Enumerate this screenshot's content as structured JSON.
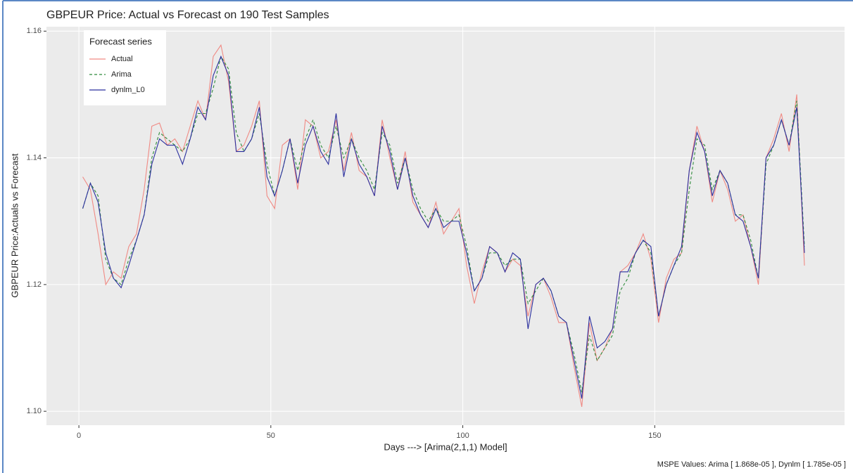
{
  "chart_data": {
    "type": "line",
    "title": "GBPEUR Price: Actual vs Forecast on 190 Test Samples",
    "x_label": "Days ---> [Arima(2,1,1) Model]",
    "y_label": "GBPEUR Price:Actuals vs Forecast",
    "caption": "MSPE Values: Arima [ 1.868e-05 ], Dynlm [ 1.785e-05 ]",
    "legend_title": "Forecast series",
    "legend_position": "top-left",
    "grid": true,
    "xlim": [
      -8.45,
      199.45
    ],
    "ylim": [
      1.0978,
      1.1607
    ],
    "xticks": [
      0,
      50,
      100,
      150
    ],
    "yticks": [
      {
        "value": 1.1,
        "label": "1.10"
      },
      1.12,
      1.14,
      1.16
    ],
    "x": [
      1,
      3,
      5,
      7,
      9,
      11,
      13,
      15,
      17,
      19,
      21,
      23,
      25,
      27,
      29,
      31,
      33,
      35,
      37,
      39,
      41,
      43,
      45,
      47,
      49,
      51,
      53,
      55,
      57,
      59,
      61,
      63,
      65,
      67,
      69,
      71,
      73,
      75,
      77,
      79,
      81,
      83,
      85,
      87,
      89,
      91,
      93,
      95,
      97,
      99,
      101,
      103,
      105,
      107,
      109,
      111,
      113,
      115,
      117,
      119,
      121,
      123,
      125,
      127,
      129,
      131,
      133,
      135,
      137,
      139,
      141,
      143,
      145,
      147,
      149,
      151,
      153,
      155,
      157,
      159,
      161,
      163,
      165,
      167,
      169,
      171,
      173,
      175,
      177,
      179,
      181,
      183,
      185,
      187,
      189
    ],
    "series": [
      {
        "name": "Actual",
        "color": "#f08a84",
        "linestyle": "solid",
        "values": [
          1.137,
          1.135,
          1.128,
          1.12,
          1.122,
          1.121,
          1.126,
          1.128,
          1.135,
          1.145,
          1.1455,
          1.142,
          1.143,
          1.141,
          1.145,
          1.149,
          1.146,
          1.156,
          1.1578,
          1.152,
          1.141,
          1.142,
          1.145,
          1.149,
          1.134,
          1.132,
          1.142,
          1.143,
          1.135,
          1.146,
          1.145,
          1.14,
          1.141,
          1.146,
          1.138,
          1.144,
          1.138,
          1.137,
          1.134,
          1.146,
          1.14,
          1.135,
          1.141,
          1.133,
          1.131,
          1.129,
          1.133,
          1.128,
          1.13,
          1.132,
          1.123,
          1.117,
          1.122,
          1.126,
          1.125,
          1.122,
          1.124,
          1.123,
          1.115,
          1.12,
          1.121,
          1.118,
          1.114,
          1.114,
          1.107,
          1.1007,
          1.114,
          1.108,
          1.11,
          1.113,
          1.122,
          1.123,
          1.125,
          1.128,
          1.124,
          1.114,
          1.121,
          1.124,
          1.125,
          1.138,
          1.145,
          1.141,
          1.133,
          1.138,
          1.135,
          1.13,
          1.131,
          1.126,
          1.12,
          1.14,
          1.143,
          1.147,
          1.141,
          1.15,
          1.123
        ]
      },
      {
        "name": "Arima",
        "color": "#2e8b3a",
        "linestyle": "dashed",
        "values": [
          1.132,
          1.136,
          1.134,
          1.124,
          1.121,
          1.12,
          1.124,
          1.127,
          1.131,
          1.14,
          1.144,
          1.143,
          1.142,
          1.141,
          1.143,
          1.147,
          1.147,
          1.151,
          1.156,
          1.154,
          1.144,
          1.141,
          1.143,
          1.147,
          1.139,
          1.134,
          1.138,
          1.143,
          1.138,
          1.143,
          1.146,
          1.142,
          1.14,
          1.145,
          1.14,
          1.143,
          1.14,
          1.138,
          1.135,
          1.144,
          1.142,
          1.136,
          1.14,
          1.135,
          1.132,
          1.13,
          1.132,
          1.13,
          1.13,
          1.131,
          1.126,
          1.119,
          1.121,
          1.125,
          1.125,
          1.123,
          1.124,
          1.124,
          1.117,
          1.119,
          1.121,
          1.119,
          1.115,
          1.114,
          1.109,
          1.103,
          1.112,
          1.108,
          1.11,
          1.112,
          1.119,
          1.121,
          1.125,
          1.127,
          1.125,
          1.115,
          1.12,
          1.123,
          1.125,
          1.135,
          1.143,
          1.142,
          1.135,
          1.138,
          1.136,
          1.131,
          1.131,
          1.127,
          1.121,
          1.139,
          1.142,
          1.146,
          1.142,
          1.149,
          1.126
        ]
      },
      {
        "name": "dynlm_L0",
        "color": "#2b2f9e",
        "linestyle": "solid",
        "values": [
          1.132,
          1.136,
          1.133,
          1.125,
          1.121,
          1.1195,
          1.123,
          1.127,
          1.131,
          1.139,
          1.143,
          1.142,
          1.142,
          1.139,
          1.143,
          1.148,
          1.146,
          1.153,
          1.156,
          1.153,
          1.141,
          1.141,
          1.143,
          1.148,
          1.137,
          1.134,
          1.138,
          1.143,
          1.136,
          1.142,
          1.145,
          1.141,
          1.139,
          1.147,
          1.137,
          1.143,
          1.139,
          1.137,
          1.134,
          1.145,
          1.141,
          1.135,
          1.14,
          1.134,
          1.131,
          1.129,
          1.132,
          1.129,
          1.13,
          1.13,
          1.125,
          1.119,
          1.121,
          1.126,
          1.125,
          1.122,
          1.125,
          1.124,
          1.113,
          1.12,
          1.121,
          1.119,
          1.115,
          1.114,
          1.108,
          1.102,
          1.115,
          1.11,
          1.111,
          1.113,
          1.122,
          1.122,
          1.125,
          1.127,
          1.126,
          1.115,
          1.12,
          1.123,
          1.126,
          1.138,
          1.144,
          1.141,
          1.134,
          1.138,
          1.136,
          1.131,
          1.13,
          1.126,
          1.121,
          1.14,
          1.142,
          1.146,
          1.142,
          1.148,
          1.125
        ]
      }
    ]
  }
}
